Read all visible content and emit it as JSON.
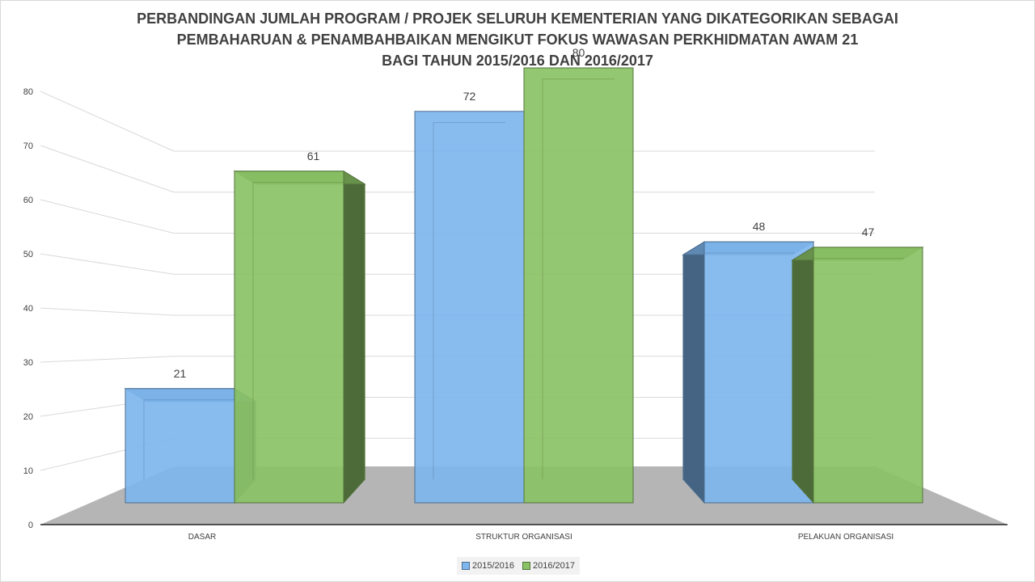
{
  "chart_data": {
    "type": "bar",
    "title_lines": [
      "PERBANDINGAN JUMLAH PROGRAM / PROJEK SELURUH KEMENTERIAN YANG DIKATEGORIKAN SEBAGAI",
      "PEMBAHARUAN & PENAMBAHBAIKAN MENGIKUT FOKUS WAWASAN PERKHIDMATAN AWAM 21",
      "BAGI TAHUN 2015/2016 DAN 2016/2017"
    ],
    "categories": [
      "DASAR",
      "STRUKTUR ORGANISASI",
      "PELAKUAN ORGANISASI"
    ],
    "series": [
      {
        "name": "2015/2016",
        "values": [
          21,
          72,
          48
        ],
        "color": "#7EB6EE"
      },
      {
        "name": "2016/2017",
        "values": [
          61,
          80,
          47
        ],
        "color": "#8BC265"
      }
    ],
    "yticks": [
      "0",
      "10",
      "20",
      "30",
      "40",
      "50",
      "60",
      "70",
      "80"
    ],
    "ylim": [
      0,
      80
    ],
    "grid": true,
    "legend_position": "bottom",
    "floor_color": "#b5b5b5"
  }
}
